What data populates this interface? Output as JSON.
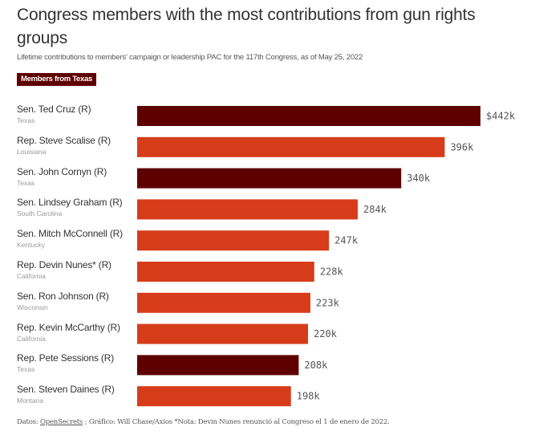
{
  "header": {
    "title": "Congress members with the most contributions from gun rights groups",
    "subtitle": "Lifetime contributions to members' campaign or leadership PAC for the 117th Congress, as of May 25, 2022",
    "legend_label": "Members from Texas"
  },
  "colors": {
    "texas": "#5e0000",
    "other": "#d63c1a"
  },
  "chart_data": {
    "type": "bar",
    "orientation": "horizontal",
    "title": "Congress members with the most contributions from gun rights groups",
    "subtitle": "Lifetime contributions to members' campaign or leadership PAC for the 117th Congress, as of May 25, 2022",
    "xlabel": "",
    "ylabel": "",
    "unit": "thousands of USD",
    "xlim": [
      0,
      442
    ],
    "grid": false,
    "legend": [
      {
        "label": "Members from Texas",
        "color": "#5e0000"
      }
    ],
    "legend_position": "top-left",
    "categories": [
      "Sen. Ted Cruz (R)",
      "Rep. Steve Scalise (R)",
      "Sen. John Cornyn (R)",
      "Sen. Lindsey Graham (R)",
      "Sen. Mitch McConnell (R)",
      "Rep. Devin Nunes* (R)",
      "Sen. Ron Johnson (R)",
      "Rep. Kevin McCarthy (R)",
      "Rep. Pete Sessions (R)",
      "Sen. Steven Daines (R)"
    ],
    "states": [
      "Texas",
      "Louisiana",
      "Texas",
      "South Carolina",
      "Kentucky",
      "California",
      "Wisconsin",
      "California",
      "Texas",
      "Montana"
    ],
    "texas": [
      true,
      false,
      true,
      false,
      false,
      false,
      false,
      false,
      true,
      false
    ],
    "values": [
      442,
      396,
      340,
      284,
      247,
      228,
      223,
      220,
      208,
      198
    ],
    "value_labels": [
      "$442k",
      "396k",
      "340k",
      "284k",
      "247k",
      "228k",
      "223k",
      "220k",
      "208k",
      "198k"
    ]
  },
  "footer": {
    "data_prefix": "Datos: ",
    "source_link": "OpenSecrets",
    "rest": " ; Gráfico: Will Chase/Axios *Nota: Devin Nunes renunció al Congreso el 1 de enero de 2022."
  }
}
